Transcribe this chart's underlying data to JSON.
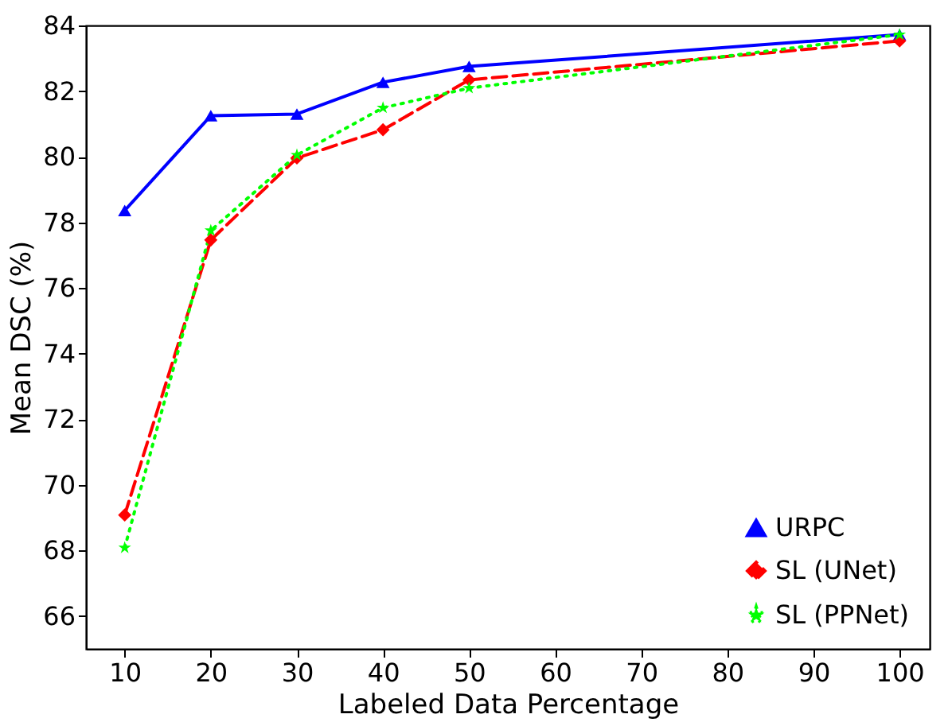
{
  "chart_data": {
    "type": "line",
    "xlabel": "Labeled Data Percentage",
    "ylabel": "Mean DSC (%)",
    "x": [
      10,
      20,
      30,
      40,
      50,
      100
    ],
    "series": [
      {
        "name": "URPC",
        "color": "#0000ff",
        "marker": "triangle",
        "line_style": "solid",
        "values": [
          78.36,
          81.25,
          81.3,
          82.27,
          82.75,
          83.72
        ]
      },
      {
        "name": "SL (UNet)",
        "color": "#ff0000",
        "marker": "diamond",
        "line_style": "dashed",
        "values": [
          69.08,
          77.46,
          79.96,
          80.82,
          82.34,
          83.53
        ]
      },
      {
        "name": "SL (PPNet)",
        "color": "#00ff00",
        "marker": "star",
        "line_style": "dotted",
        "values": [
          68.08,
          77.75,
          80.05,
          81.49,
          82.09,
          83.72
        ]
      }
    ],
    "xlim": [
      5.5,
      103.5
    ],
    "xticks": [
      10,
      20,
      30,
      40,
      50,
      60,
      70,
      80,
      90,
      100
    ],
    "ylim": [
      65,
      84
    ],
    "yticks": [
      66,
      68,
      70,
      72,
      74,
      76,
      78,
      80,
      82,
      84
    ],
    "grid": false,
    "legend": "bottom right"
  }
}
